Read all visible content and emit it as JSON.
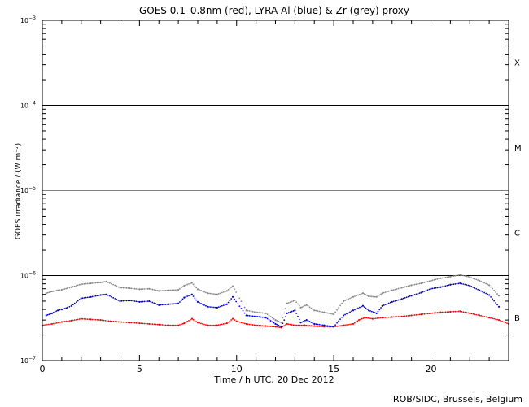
{
  "chart_data": {
    "type": "scatter",
    "title": "GOES 0.1–0.8nm (red), LYRA Al (blue) & Zr (grey) proxy",
    "xlabel": "Time / h UTC, 20 Dec 2012",
    "ylabel": "GOES irradiance / (W m⁻²)",
    "credit": "ROB/SIDC, Brussels, Belgium",
    "xlim": [
      0,
      24
    ],
    "ylim": [
      1e-07,
      0.001
    ],
    "yscale": "log",
    "x_ticks": [
      0,
      5,
      10,
      15,
      20
    ],
    "x_tick_labels": [
      "0",
      "5",
      "10",
      "15",
      "20"
    ],
    "y_ticks": [
      {
        "value": 1e-07,
        "base": "10",
        "exp": "−7"
      },
      {
        "value": 1e-06,
        "base": "10",
        "exp": "−6"
      },
      {
        "value": 1e-05,
        "base": "10",
        "exp": "−5"
      },
      {
        "value": 0.0001,
        "base": "10",
        "exp": "−4"
      },
      {
        "value": 0.001,
        "base": "10",
        "exp": "−3"
      }
    ],
    "class_lines": [
      1e-06,
      1e-05,
      0.0001
    ],
    "flare_classes": [
      {
        "label": "B",
        "value": 3.2e-07
      },
      {
        "label": "C",
        "value": 3.2e-06
      },
      {
        "label": "M",
        "value": 3.2e-05
      },
      {
        "label": "X",
        "value": 0.00032
      }
    ],
    "series": [
      {
        "color": "#ff0000",
        "points": [
          [
            0.0,
            2.6e-07
          ],
          [
            0.5,
            2.7e-07
          ],
          [
            1.0,
            2.85e-07
          ],
          [
            1.5,
            2.95e-07
          ],
          [
            2.0,
            3.1e-07
          ],
          [
            2.5,
            3.05e-07
          ],
          [
            3.0,
            3e-07
          ],
          [
            3.5,
            2.9e-07
          ],
          [
            4.0,
            2.85e-07
          ],
          [
            4.5,
            2.8e-07
          ],
          [
            5.0,
            2.75e-07
          ],
          [
            5.5,
            2.7e-07
          ],
          [
            6.0,
            2.65e-07
          ],
          [
            6.5,
            2.6e-07
          ],
          [
            7.0,
            2.6e-07
          ],
          [
            7.3,
            2.75e-07
          ],
          [
            7.7,
            3.1e-07
          ],
          [
            8.0,
            2.8e-07
          ],
          [
            8.5,
            2.6e-07
          ],
          [
            9.0,
            2.6e-07
          ],
          [
            9.5,
            2.75e-07
          ],
          [
            9.8,
            3.1e-07
          ],
          [
            10.0,
            2.9e-07
          ],
          [
            10.5,
            2.7e-07
          ],
          [
            11.0,
            2.6e-07
          ],
          [
            11.5,
            2.55e-07
          ],
          [
            12.0,
            2.5e-07
          ],
          [
            12.3,
            2.45e-07
          ],
          [
            12.6,
            2.7e-07
          ],
          [
            13.0,
            2.6e-07
          ],
          [
            13.5,
            2.6e-07
          ],
          [
            14.0,
            2.55e-07
          ],
          [
            14.5,
            2.5e-07
          ],
          [
            15.0,
            2.5e-07
          ],
          [
            15.5,
            2.6e-07
          ],
          [
            16.0,
            2.7e-07
          ],
          [
            16.3,
            3e-07
          ],
          [
            16.6,
            3.2e-07
          ],
          [
            17.0,
            3.1e-07
          ],
          [
            17.5,
            3.2e-07
          ],
          [
            18.0,
            3.25e-07
          ],
          [
            18.5,
            3.3e-07
          ],
          [
            19.0,
            3.4e-07
          ],
          [
            19.5,
            3.5e-07
          ],
          [
            20.0,
            3.6e-07
          ],
          [
            20.5,
            3.7e-07
          ],
          [
            21.0,
            3.75e-07
          ],
          [
            21.5,
            3.8e-07
          ],
          [
            22.0,
            3.6e-07
          ],
          [
            22.5,
            3.4e-07
          ],
          [
            23.0,
            3.2e-07
          ],
          [
            23.5,
            3e-07
          ],
          [
            24.0,
            2.7e-07
          ]
        ]
      },
      {
        "color": "#0000cc",
        "points": [
          [
            0.2,
            3.4e-07
          ],
          [
            0.5,
            3.6e-07
          ],
          [
            0.8,
            3.9e-07
          ],
          [
            1.0,
            4e-07
          ],
          [
            1.3,
            4.2e-07
          ],
          [
            1.5,
            4.4e-07
          ],
          [
            2.0,
            5.4e-07
          ],
          [
            2.5,
            5.6e-07
          ],
          [
            3.0,
            5.9e-07
          ],
          [
            3.3,
            6e-07
          ],
          [
            4.0,
            5e-07
          ],
          [
            4.5,
            5.1e-07
          ],
          [
            5.0,
            4.9e-07
          ],
          [
            5.5,
            5e-07
          ],
          [
            6.0,
            4.5e-07
          ],
          [
            6.5,
            4.6e-07
          ],
          [
            7.0,
            4.7e-07
          ],
          [
            7.3,
            5.5e-07
          ],
          [
            7.7,
            6e-07
          ],
          [
            8.0,
            4.9e-07
          ],
          [
            8.5,
            4.3e-07
          ],
          [
            9.0,
            4.2e-07
          ],
          [
            9.5,
            4.6e-07
          ],
          [
            9.8,
            5.6e-07
          ],
          [
            10.5,
            3.4e-07
          ],
          [
            11.0,
            3.3e-07
          ],
          [
            11.5,
            3.2e-07
          ],
          [
            12.0,
            2.7e-07
          ],
          [
            12.3,
            2.5e-07
          ],
          [
            12.6,
            3.6e-07
          ],
          [
            13.0,
            3.9e-07
          ],
          [
            13.3,
            2.8e-07
          ],
          [
            13.6,
            3e-07
          ],
          [
            14.0,
            2.7e-07
          ],
          [
            14.5,
            2.6e-07
          ],
          [
            15.0,
            2.5e-07
          ],
          [
            15.5,
            3.4e-07
          ],
          [
            16.0,
            3.9e-07
          ],
          [
            16.5,
            4.4e-07
          ],
          [
            16.8,
            3.9e-07
          ],
          [
            17.2,
            3.6e-07
          ],
          [
            17.5,
            4.4e-07
          ],
          [
            18.0,
            4.9e-07
          ],
          [
            18.5,
            5.3e-07
          ],
          [
            19.0,
            5.8e-07
          ],
          [
            19.5,
            6.3e-07
          ],
          [
            20.0,
            7e-07
          ],
          [
            20.5,
            7.3e-07
          ],
          [
            21.0,
            7.8e-07
          ],
          [
            21.5,
            8.1e-07
          ],
          [
            22.0,
            7.6e-07
          ],
          [
            22.5,
            6.7e-07
          ],
          [
            23.0,
            5.9e-07
          ],
          [
            23.5,
            4.3e-07
          ]
        ]
      },
      {
        "color": "#888888",
        "points": [
          [
            0.2,
            6.2e-07
          ],
          [
            0.5,
            6.5e-07
          ],
          [
            0.8,
            6.7e-07
          ],
          [
            1.0,
            6.8e-07
          ],
          [
            1.3,
            7.1e-07
          ],
          [
            1.5,
            7.3e-07
          ],
          [
            2.0,
            7.9e-07
          ],
          [
            2.5,
            8.1e-07
          ],
          [
            3.0,
            8.3e-07
          ],
          [
            3.3,
            8.5e-07
          ],
          [
            4.0,
            7.2e-07
          ],
          [
            4.5,
            7.1e-07
          ],
          [
            5.0,
            6.9e-07
          ],
          [
            5.5,
            7e-07
          ],
          [
            6.0,
            6.6e-07
          ],
          [
            6.5,
            6.7e-07
          ],
          [
            7.0,
            6.8e-07
          ],
          [
            7.3,
            7.6e-07
          ],
          [
            7.7,
            8.2e-07
          ],
          [
            8.0,
            6.9e-07
          ],
          [
            8.5,
            6.2e-07
          ],
          [
            9.0,
            6e-07
          ],
          [
            9.5,
            6.6e-07
          ],
          [
            9.8,
            7.5e-07
          ],
          [
            10.5,
            3.9e-07
          ],
          [
            11.0,
            3.7e-07
          ],
          [
            11.5,
            3.6e-07
          ],
          [
            12.0,
            3e-07
          ],
          [
            12.3,
            2.8e-07
          ],
          [
            12.6,
            4.7e-07
          ],
          [
            13.0,
            5.1e-07
          ],
          [
            13.3,
            4.2e-07
          ],
          [
            13.6,
            4.5e-07
          ],
          [
            14.0,
            3.9e-07
          ],
          [
            14.5,
            3.7e-07
          ],
          [
            15.0,
            3.5e-07
          ],
          [
            15.5,
            5e-07
          ],
          [
            16.0,
            5.6e-07
          ],
          [
            16.5,
            6.2e-07
          ],
          [
            16.8,
            5.7e-07
          ],
          [
            17.2,
            5.6e-07
          ],
          [
            17.5,
            6.2e-07
          ],
          [
            18.0,
            6.7e-07
          ],
          [
            18.5,
            7.2e-07
          ],
          [
            19.0,
            7.7e-07
          ],
          [
            19.5,
            8.1e-07
          ],
          [
            20.0,
            8.7e-07
          ],
          [
            20.5,
            9.3e-07
          ],
          [
            21.0,
            9.7e-07
          ],
          [
            21.5,
            1.02e-06
          ],
          [
            22.0,
            9.6e-07
          ],
          [
            22.5,
            8.7e-07
          ],
          [
            23.0,
            7.7e-07
          ],
          [
            23.5,
            5.8e-07
          ]
        ]
      }
    ]
  }
}
